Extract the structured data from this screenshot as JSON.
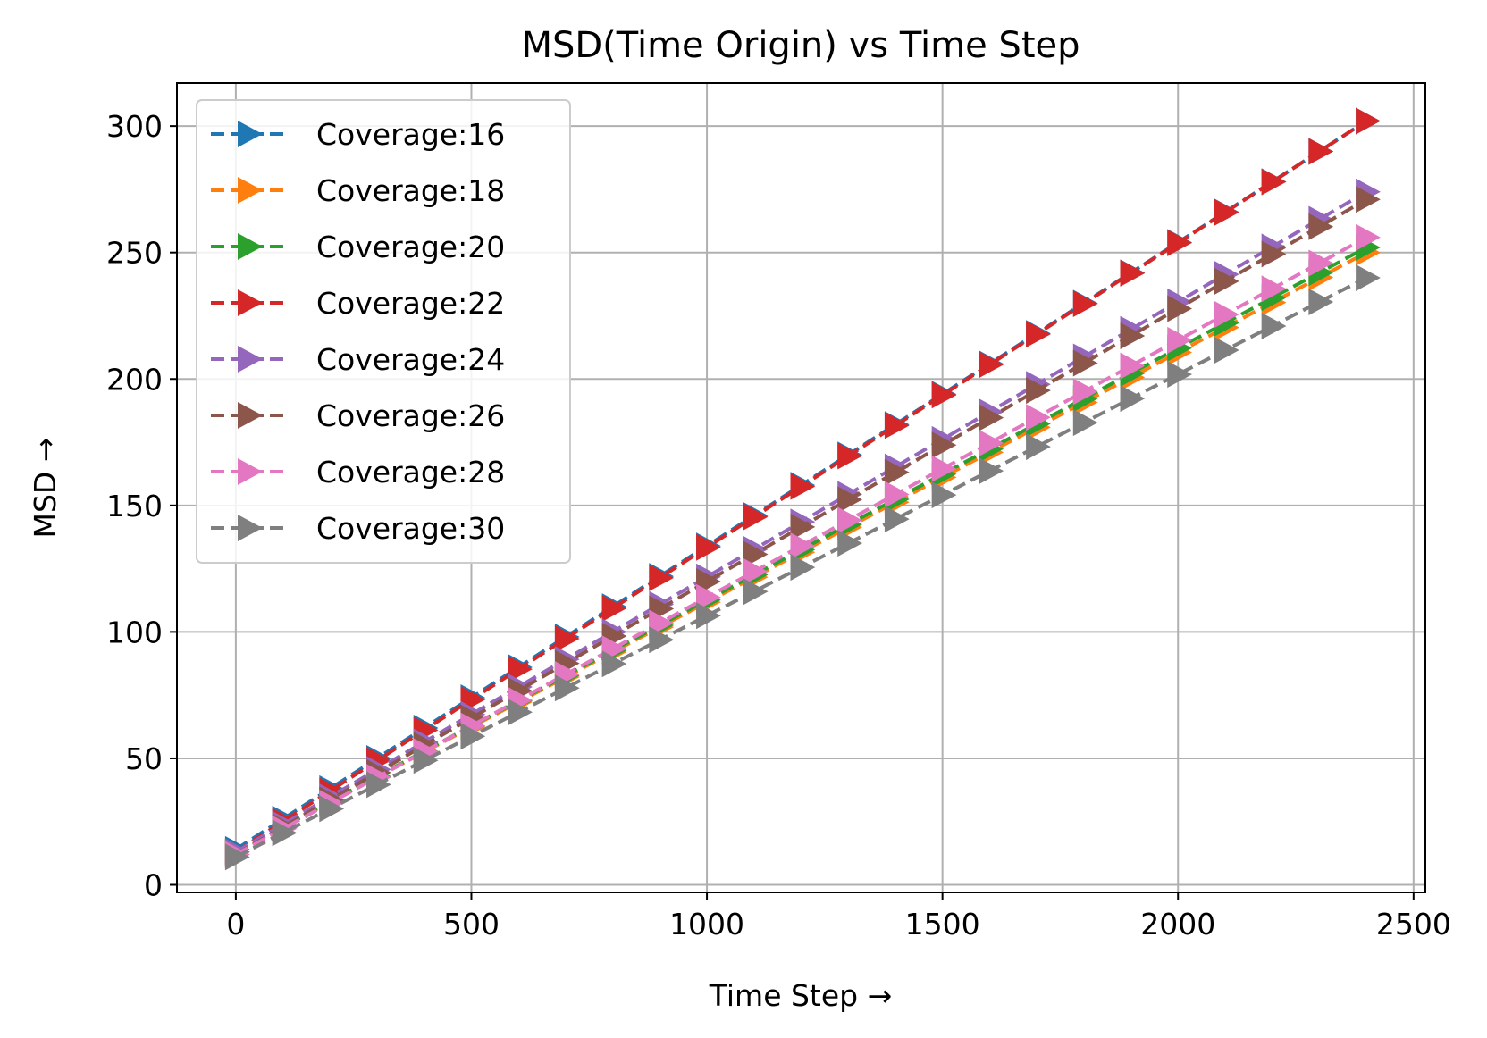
{
  "chart_data": {
    "type": "line",
    "title": "MSD(Time Origin) vs Time Step",
    "xlabel": "Time Step →",
    "ylabel": "MSD →",
    "xlim": [
      -125,
      2525
    ],
    "ylim": [
      -3,
      317
    ],
    "xticks": [
      0,
      500,
      1000,
      1500,
      2000,
      2500
    ],
    "yticks": [
      0,
      50,
      100,
      150,
      200,
      250,
      300
    ],
    "grid": true,
    "legend_position": "upper-left",
    "line_style": "dashed",
    "marker": "triangle-right",
    "x": [
      0,
      100,
      200,
      300,
      400,
      500,
      600,
      700,
      800,
      900,
      1000,
      1100,
      1200,
      1300,
      1400,
      1500,
      1600,
      1700,
      1800,
      1900,
      2000,
      2100,
      2200,
      2300,
      2400
    ],
    "series": [
      {
        "name": "Coverage:16",
        "color": "#1f77b4",
        "start": 14,
        "end": 302
      },
      {
        "name": "Coverage:18",
        "color": "#ff7f0e",
        "start": 13,
        "end": 250
      },
      {
        "name": "Coverage:20",
        "color": "#2ca02c",
        "start": 13,
        "end": 252
      },
      {
        "name": "Coverage:22",
        "color": "#d62728",
        "start": 13,
        "end": 302
      },
      {
        "name": "Coverage:24",
        "color": "#9467bd",
        "start": 13,
        "end": 274
      },
      {
        "name": "Coverage:26",
        "color": "#8c564b",
        "start": 12,
        "end": 271
      },
      {
        "name": "Coverage:28",
        "color": "#e377c2",
        "start": 12,
        "end": 256
      },
      {
        "name": "Coverage:30",
        "color": "#7f7f7f",
        "start": 11,
        "end": 240
      }
    ]
  }
}
